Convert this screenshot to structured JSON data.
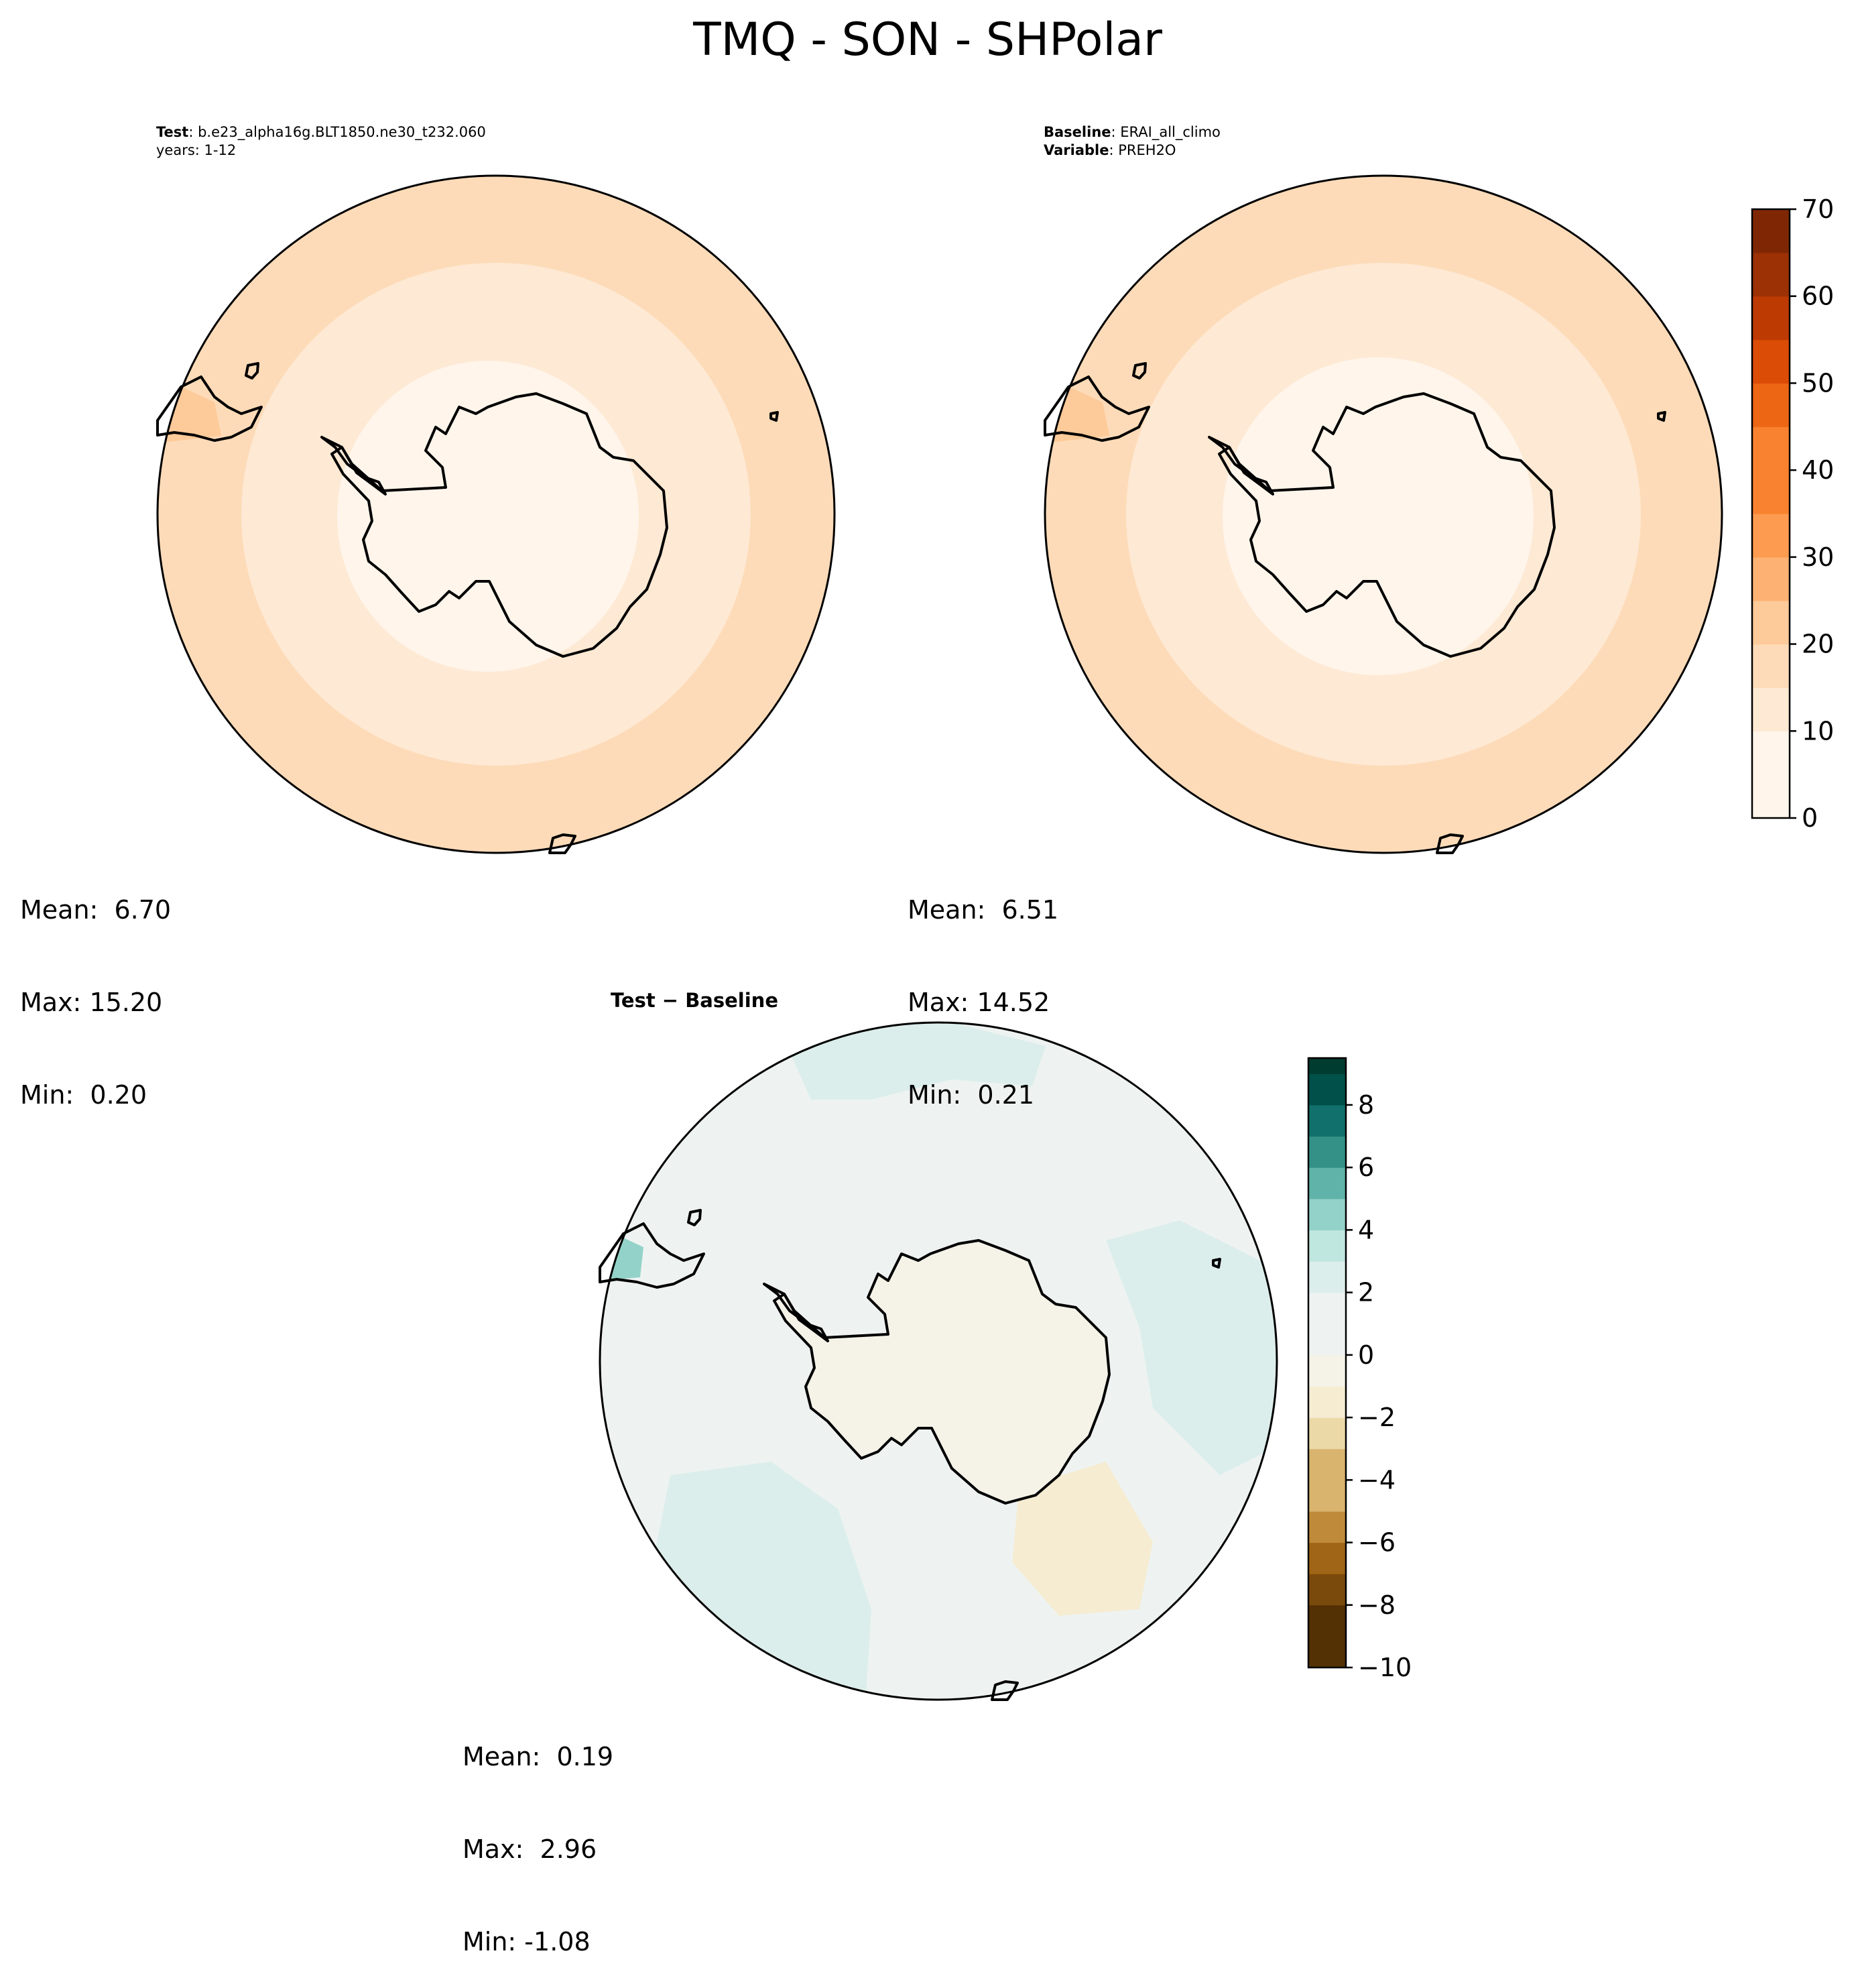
{
  "title": "TMQ - SON - SHPolar",
  "panels": {
    "test": {
      "header": [
        {
          "key": "Test",
          "sep": ": ",
          "value": "b.e23_alpha16g.BLT1850.ne30_t232.060"
        },
        {
          "key": "",
          "sep": "",
          "value": "years: 1-12"
        }
      ],
      "stats": {
        "mean": "Mean:  6.70",
        "max": "Max: 15.20",
        "min": "Min:  0.20"
      }
    },
    "baseline": {
      "header": [
        {
          "key": "Baseline",
          "sep": ": ",
          "value": "ERAI_all_climo"
        },
        {
          "key": "Variable",
          "sep": ": ",
          "value": "PREH2O"
        }
      ],
      "stats": {
        "mean": "Mean:  6.51",
        "max": "Max: 14.52",
        "min": "Min:  0.21"
      }
    },
    "diff": {
      "title": "Test − Baseline",
      "stats": {
        "mean": "Mean:  0.19",
        "max": "Max:  2.96",
        "min": "Min: -1.08"
      }
    }
  },
  "colors": {
    "main_cmap": [
      "#fff5eb",
      "#fee9d4",
      "#fddbb8",
      "#fdca99",
      "#fdb273",
      "#fd9b50",
      "#f8822f",
      "#ec6614",
      "#db4c07",
      "#be3a03",
      "#9b3104",
      "#7f2704"
    ],
    "diff_cmap_neg": [
      "#543005",
      "#7a4a0c",
      "#a16517",
      "#bf8a3a",
      "#d9b46f",
      "#ecd9a8",
      "#f5ecd2",
      "#f5f2e8"
    ],
    "diff_cmap_pos": [
      "#eef3f2",
      "#dceeeb",
      "#bfe6df",
      "#93d2c8",
      "#5fb3a9",
      "#339187",
      "#11706b",
      "#01514a",
      "#003c30"
    ]
  },
  "chart_data": [
    {
      "type": "heatmap",
      "projection": "south-polar-stereographic",
      "panel": "test",
      "colorbar": {
        "ticks": [
          "0",
          "10",
          "20",
          "30",
          "40",
          "50",
          "60",
          "70"
        ],
        "range": [
          0,
          70
        ],
        "step": 5
      },
      "rings": [
        {
          "value_range": [
            10,
            15
          ],
          "from_lat": -50,
          "to_lat": -55
        },
        {
          "value_range": [
            5,
            10
          ],
          "from_lat": -55,
          "to_lat": -68
        },
        {
          "value_range": [
            0,
            5
          ],
          "from_lat": -68,
          "to_lat": -90
        }
      ]
    },
    {
      "type": "heatmap",
      "projection": "south-polar-stereographic",
      "panel": "baseline",
      "colorbar": {
        "ticks": [
          "0",
          "10",
          "20",
          "30",
          "40",
          "50",
          "60",
          "70"
        ],
        "range": [
          0,
          70
        ],
        "step": 5
      },
      "rings": [
        {
          "value_range": [
            10,
            15
          ],
          "from_lat": -50,
          "to_lat": -56
        },
        {
          "value_range": [
            5,
            10
          ],
          "from_lat": -56,
          "to_lat": -68
        },
        {
          "value_range": [
            0,
            5
          ],
          "from_lat": -68,
          "to_lat": -90
        }
      ]
    },
    {
      "type": "heatmap",
      "projection": "south-polar-stereographic",
      "panel": "diff",
      "colorbar": {
        "ticks": [
          "8",
          "6",
          "4",
          "2",
          "0",
          "−2",
          "−4",
          "−6",
          "−8",
          "−10"
        ],
        "range": [
          -10,
          9.5
        ],
        "step": 1
      },
      "patterns": [
        {
          "region": "ocean",
          "value_range": [
            0,
            1
          ]
        },
        {
          "region": "antarctica",
          "value_range": [
            -1,
            0
          ]
        },
        {
          "region": "tip of South America",
          "value_range": [
            2,
            3
          ]
        }
      ]
    }
  ]
}
